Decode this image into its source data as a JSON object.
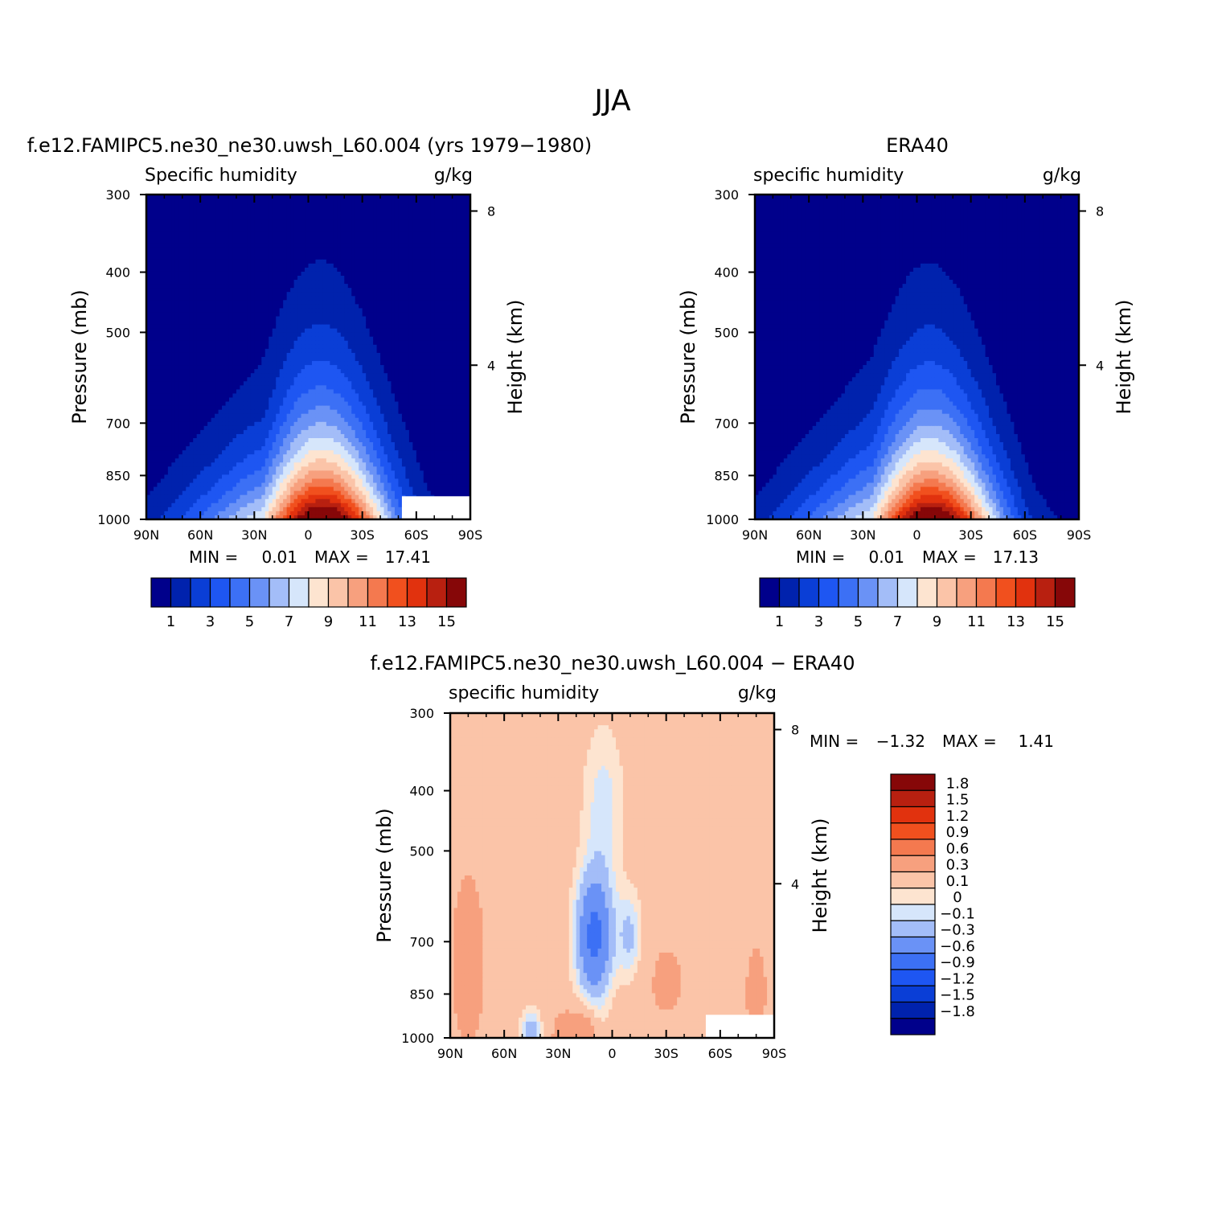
{
  "figure": {
    "title": "JJA"
  },
  "chart_data": [
    {
      "type": "heatmap",
      "title": "f.e12.FAMIPC5.ne30_ne30.uwsh_L60.004 (yrs 1979−1980)",
      "subtitle_left": "Specific humidity",
      "subtitle_right": "g/kg",
      "ylabel": "Pressure (mb)",
      "ylabel_right": "Height (km)",
      "x_ticks": [
        "90N",
        "60N",
        "30N",
        "0",
        "30S",
        "60S",
        "90S"
      ],
      "x_values": [
        90,
        60,
        30,
        0,
        -30,
        -60,
        -90
      ],
      "xlim": [
        90,
        -90
      ],
      "y_ticks": [
        "300",
        "400",
        "500",
        "700",
        "850",
        "1000"
      ],
      "y_values": [
        300,
        400,
        500,
        700,
        850,
        1000
      ],
      "ylim": [
        300,
        1000
      ],
      "y_scale": "log",
      "height_ticks": [
        "8",
        "4"
      ],
      "height_values": [
        8,
        4
      ],
      "min_label": "MIN =",
      "min_value": "0.01",
      "max_label": "MAX =",
      "max_value": "17.41",
      "colorbar_labels": [
        "1",
        "3",
        "5",
        "7",
        "9",
        "11",
        "13",
        "15"
      ],
      "colorbar_colors": [
        "#00008b",
        "#0022ad",
        "#0a3ed6",
        "#1e56f2",
        "#3c70f5",
        "#6a92f6",
        "#a3bdf8",
        "#d6e6fb",
        "#fde4d0",
        "#fbc4a8",
        "#f7a07e",
        "#f4794f",
        "#f1501e",
        "#e1320e",
        "#b82010",
        "#860708"
      ],
      "peak_lat": -8,
      "peak_value": 17.41
    },
    {
      "type": "heatmap",
      "title": "ERA40",
      "subtitle_left": "specific humidity",
      "subtitle_right": "g/kg",
      "ylabel": "Pressure (mb)",
      "ylabel_right": "Height (km)",
      "x_ticks": [
        "90N",
        "60N",
        "30N",
        "0",
        "30S",
        "60S",
        "90S"
      ],
      "x_values": [
        90,
        60,
        30,
        0,
        -30,
        -60,
        -90
      ],
      "xlim": [
        90,
        -90
      ],
      "y_ticks": [
        "300",
        "400",
        "500",
        "700",
        "850",
        "1000"
      ],
      "y_values": [
        300,
        400,
        500,
        700,
        850,
        1000
      ],
      "ylim": [
        300,
        1000
      ],
      "y_scale": "log",
      "height_ticks": [
        "8",
        "4"
      ],
      "height_values": [
        8,
        4
      ],
      "min_label": "MIN =",
      "min_value": "0.01",
      "max_label": "MAX =",
      "max_value": "17.13",
      "colorbar_labels": [
        "1",
        "3",
        "5",
        "7",
        "9",
        "11",
        "13",
        "15"
      ],
      "colorbar_colors": [
        "#00008b",
        "#0022ad",
        "#0a3ed6",
        "#1e56f2",
        "#3c70f5",
        "#6a92f6",
        "#a3bdf8",
        "#d6e6fb",
        "#fde4d0",
        "#fbc4a8",
        "#f7a07e",
        "#f4794f",
        "#f1501e",
        "#e1320e",
        "#b82010",
        "#860708"
      ],
      "peak_lat": -8,
      "peak_value": 17.13
    },
    {
      "type": "heatmap",
      "title": "f.e12.FAMIPC5.ne30_ne30.uwsh_L60.004 − ERA40",
      "subtitle_left": "specific humidity",
      "subtitle_right": "g/kg",
      "ylabel": "Pressure (mb)",
      "ylabel_right": "Height (km)",
      "x_ticks": [
        "90N",
        "60N",
        "30N",
        "0",
        "30S",
        "60S",
        "90S"
      ],
      "x_values": [
        90,
        60,
        30,
        0,
        -30,
        -60,
        -90
      ],
      "xlim": [
        90,
        -90
      ],
      "y_ticks": [
        "300",
        "400",
        "500",
        "700",
        "850",
        "1000"
      ],
      "y_values": [
        300,
        400,
        500,
        700,
        850,
        1000
      ],
      "ylim": [
        300,
        1000
      ],
      "y_scale": "log",
      "height_ticks": [
        "8",
        "4"
      ],
      "height_values": [
        8,
        4
      ],
      "min_label": "MIN =",
      "min_value": "−1.32",
      "max_label": "MAX =",
      "max_value": "1.41",
      "colorbar_labels": [
        "1.8",
        "1.5",
        "1.2",
        "0.9",
        "0.6",
        "0.3",
        "0.1",
        "0",
        "−0.1",
        "−0.3",
        "−0.6",
        "−0.9",
        "−1.2",
        "−1.5",
        "−1.8"
      ],
      "colorbar_colors": [
        "#860708",
        "#b82010",
        "#e1320e",
        "#f1501e",
        "#f4794f",
        "#f7a07e",
        "#fbc4a8",
        "#fde4d0",
        "#d6e6fb",
        "#a3bdf8",
        "#6a92f6",
        "#3c70f5",
        "#1e56f2",
        "#0a3ed6",
        "#0022ad",
        "#00008b"
      ]
    }
  ]
}
